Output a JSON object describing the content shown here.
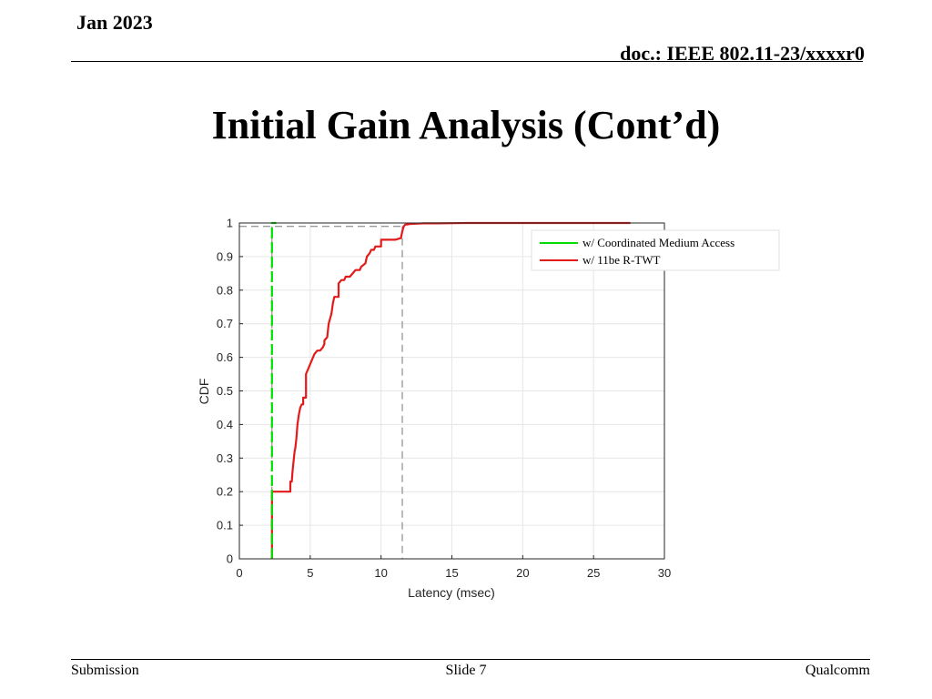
{
  "header": {
    "date": "Jan 2023",
    "doc": "doc.: IEEE 802.11-23/xxxxr0"
  },
  "slide_title": "Initial Gain Analysis (Cont’d)",
  "footer": {
    "left": "Submission",
    "center": "Slide 7",
    "right": "Qualcomm"
  },
  "chart_data": {
    "type": "line",
    "xlabel": "Latency (msec)",
    "ylabel": "CDF",
    "xlim": [
      0,
      30
    ],
    "ylim": [
      0,
      1
    ],
    "xticks": [
      "0",
      "5",
      "10",
      "15",
      "20",
      "25",
      "30"
    ],
    "yticks": [
      "0",
      "0.1",
      "0.2",
      "0.3",
      "0.4",
      "0.5",
      "0.6",
      "0.7",
      "0.8",
      "0.9",
      "1"
    ],
    "grid": true,
    "legend": "top-right",
    "series": [
      {
        "name": "w/ Coordinated Medium Access",
        "color": "#00dd00",
        "style": "dashed",
        "x": [
          2.3,
          2.3,
          2.6
        ],
        "y": [
          0,
          1,
          1
        ]
      },
      {
        "name": "w/ 11be R-TWT",
        "color": "#e21a1a",
        "style": "solid",
        "x": [
          2.3,
          2.3,
          3.6,
          3.6,
          3.7,
          3.75,
          3.85,
          3.9,
          3.95,
          4.0,
          4.05,
          4.1,
          4.2,
          4.3,
          4.4,
          4.5,
          4.5,
          4.7,
          4.7,
          5.3,
          5.3,
          5.5,
          5.7,
          5.9,
          6.0,
          6.0,
          6.2,
          6.3,
          6.5,
          6.6,
          6.7,
          7.0,
          7.0,
          7.2,
          7.4,
          7.5,
          7.8,
          8.0,
          8.2,
          8.5,
          8.6,
          8.9,
          9.0,
          9.2,
          9.3,
          9.5,
          9.6,
          9.7,
          10.0,
          10.0,
          11.0,
          11.4,
          11.5,
          11.6,
          11.7,
          11.9,
          12.0,
          12.6,
          13.0,
          14.0,
          16.0,
          20.0,
          27.6
        ],
        "y": [
          0,
          0.2,
          0.2,
          0.23,
          0.23,
          0.26,
          0.3,
          0.32,
          0.33,
          0.35,
          0.37,
          0.4,
          0.43,
          0.45,
          0.46,
          0.46,
          0.48,
          0.48,
          0.55,
          0.61,
          0.61,
          0.62,
          0.62,
          0.63,
          0.64,
          0.65,
          0.66,
          0.7,
          0.73,
          0.76,
          0.78,
          0.78,
          0.82,
          0.83,
          0.83,
          0.84,
          0.84,
          0.85,
          0.86,
          0.86,
          0.87,
          0.88,
          0.9,
          0.91,
          0.92,
          0.92,
          0.93,
          0.93,
          0.93,
          0.95,
          0.95,
          0.955,
          0.975,
          0.99,
          0.995,
          0.996,
          0.997,
          0.998,
          0.999,
          0.999,
          1.0,
          1.0,
          1.0
        ]
      }
    ],
    "reference_lines": [
      {
        "x": 2.3,
        "y": 0.99
      },
      {
        "x": 11.5,
        "y": 0.99
      }
    ]
  }
}
